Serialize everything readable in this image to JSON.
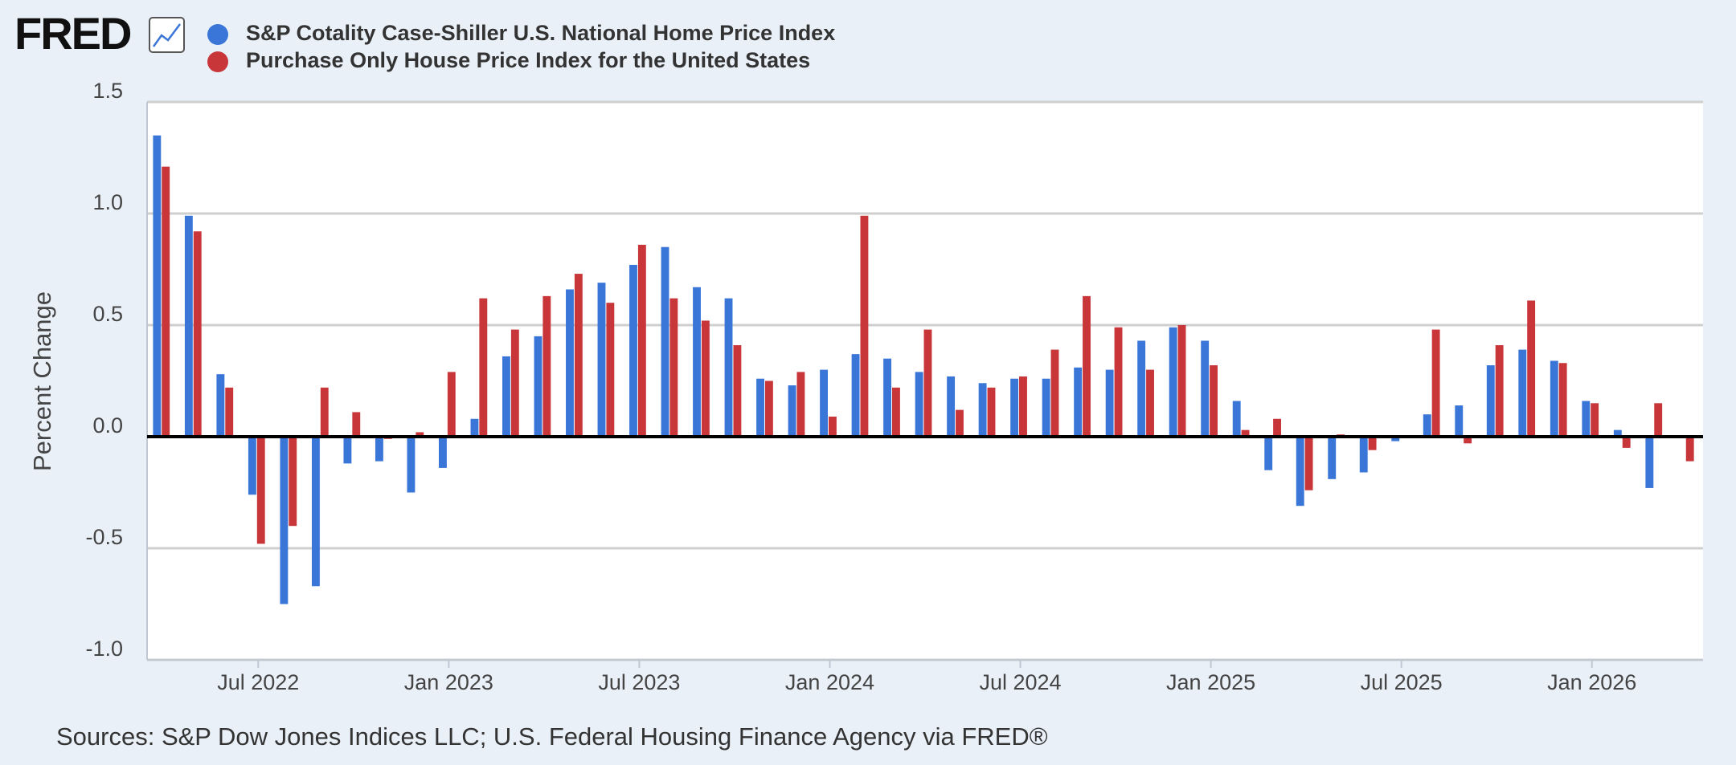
{
  "chart_data": {
    "type": "bar",
    "logo": "FRED",
    "ylabel": "Percent Change",
    "source": "Sources: S&P Dow Jones Indices LLC; U.S. Federal Housing Finance Agency via FRED®",
    "x": [
      "2022-04",
      "2022-05",
      "2022-06",
      "2022-07",
      "2022-08",
      "2022-09",
      "2022-10",
      "2022-11",
      "2022-12",
      "2023-01",
      "2023-02",
      "2023-03",
      "2023-04",
      "2023-05",
      "2023-06",
      "2023-07",
      "2023-08",
      "2023-09",
      "2023-10",
      "2023-11",
      "2023-12",
      "2024-01",
      "2024-02",
      "2024-03",
      "2024-04",
      "2024-05",
      "2024-06",
      "2024-07",
      "2024-08",
      "2024-09",
      "2024-10",
      "2024-11",
      "2024-12",
      "2025-01",
      "2025-02",
      "2025-03",
      "2025-04",
      "2025-05",
      "2025-06",
      "2025-07",
      "2025-08",
      "2025-09",
      "2025-10",
      "2025-11",
      "2025-12",
      "2026-01",
      "2026-02",
      "2026-03",
      "2026-04"
    ],
    "series": [
      {
        "name": "S&P Cotality Case-Shiller U.S. National Home Price Index",
        "color": "#3a76d8",
        "values": [
          1.35,
          0.99,
          0.28,
          -0.26,
          -0.75,
          -0.67,
          -0.12,
          -0.11,
          -0.25,
          -0.14,
          0.08,
          0.36,
          0.45,
          0.66,
          0.69,
          0.77,
          0.85,
          0.67,
          0.62,
          0.26,
          0.23,
          0.3,
          0.37,
          0.35,
          0.29,
          0.27,
          0.24,
          0.26,
          0.26,
          0.31,
          0.3,
          0.43,
          0.49,
          0.43,
          0.16,
          -0.15,
          -0.31,
          -0.19,
          -0.16,
          -0.02,
          0.1,
          0.14,
          0.32,
          0.39,
          0.34,
          0.16,
          0.03,
          -0.23,
          null
        ]
      },
      {
        "name": "Purchase Only House Price Index for the United States",
        "color": "#c8363a",
        "values": [
          1.21,
          0.92,
          0.22,
          -0.48,
          -0.4,
          0.22,
          0.11,
          -0.01,
          0.02,
          0.29,
          0.62,
          0.48,
          0.63,
          0.73,
          0.6,
          0.86,
          0.62,
          0.52,
          0.41,
          0.25,
          0.29,
          0.09,
          0.99,
          0.22,
          0.48,
          0.12,
          0.22,
          0.27,
          0.39,
          0.63,
          0.49,
          0.3,
          0.5,
          0.32,
          0.03,
          0.08,
          -0.24,
          0.01,
          -0.06,
          0,
          0.48,
          -0.03,
          0.41,
          0.61,
          0.33,
          0.15,
          -0.05,
          0.15,
          -0.11
        ]
      }
    ],
    "ylim": [
      -1.0,
      1.5
    ],
    "yticks": [
      {
        "value": -1.0,
        "label": "-1.0"
      },
      -0.5,
      {
        "value": 0,
        "label": "0.0"
      },
      0.5,
      {
        "value": 1.0,
        "label": "1.0"
      },
      1.5
    ],
    "xticks": [
      {
        "value": "2022-07",
        "label": "Jul 2022"
      },
      {
        "value": "2023-01",
        "label": "Jan 2023"
      },
      {
        "value": "2023-07",
        "label": "Jul 2023"
      },
      {
        "value": "2024-01",
        "label": "Jan 2024"
      },
      {
        "value": "2024-07",
        "label": "Jul 2024"
      },
      {
        "value": "2025-01",
        "label": "Jan 2025"
      },
      {
        "value": "2025-07",
        "label": "Jul 2025"
      },
      {
        "value": "2026-01",
        "label": "Jan 2026"
      }
    ],
    "grid": true
  }
}
